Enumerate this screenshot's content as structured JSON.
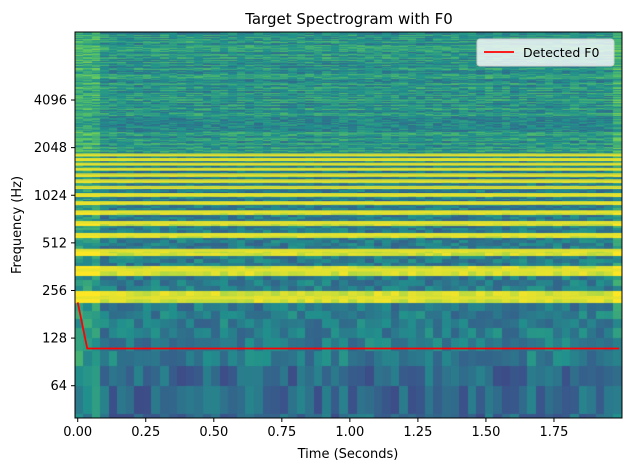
{
  "chart_data": {
    "type": "heatmap",
    "title": "Target Spectrogram with F0",
    "xlabel": "Time (Seconds)",
    "ylabel": "Frequency (Hz)",
    "xlim": [
      -0.01,
      2.0
    ],
    "ylim_hz": [
      40,
      11025
    ],
    "y_scale": "log2",
    "x_ticks": [
      {
        "value": 0.0,
        "label": "0.00"
      },
      {
        "value": 0.25,
        "label": "0.25"
      },
      {
        "value": 0.5,
        "label": "0.50"
      },
      {
        "value": 0.75,
        "label": "0.75"
      },
      {
        "value": 1.0,
        "label": "1.00"
      },
      {
        "value": 1.25,
        "label": "1.25"
      },
      {
        "value": 1.5,
        "label": "1.50"
      },
      {
        "value": 1.75,
        "label": "1.75"
      }
    ],
    "y_ticks": [
      {
        "value": 64,
        "label": "64"
      },
      {
        "value": 128,
        "label": "128"
      },
      {
        "value": 256,
        "label": "256"
      },
      {
        "value": 512,
        "label": "512"
      },
      {
        "value": 1024,
        "label": "1024"
      },
      {
        "value": 2048,
        "label": "2048"
      },
      {
        "value": 4096,
        "label": "4096"
      }
    ],
    "colormap": "viridis",
    "harmonics_hz": [
      230,
      345,
      460,
      575,
      690,
      805,
      920,
      1035,
      1150,
      1265,
      1380,
      1495,
      1610,
      1725,
      1840
    ],
    "series": [
      {
        "name": "Detected F0",
        "color": "#ff0000",
        "x": [
          0.0,
          0.035,
          1.99
        ],
        "y": [
          215,
          110,
          110
        ]
      }
    ],
    "legend": {
      "placement": "upper-right"
    },
    "grid": false
  }
}
